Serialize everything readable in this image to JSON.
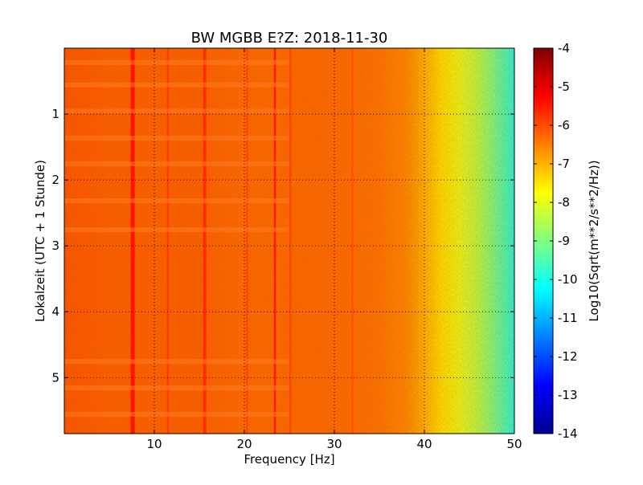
{
  "chart_data": {
    "type": "heatmap",
    "title": "BW MGBB E?Z: 2018-11-30",
    "xlabel": "Frequency [Hz]",
    "ylabel": "Lokalzeit (UTC + 1 Stunde)",
    "colorbar_label": "Log10(Sqrt(m**2/s**2/Hz))",
    "xlim": [
      0,
      50
    ],
    "ylim": [
      5.85,
      0
    ],
    "y_axis_inverted": true,
    "x_ticks": [
      "10",
      "20",
      "30",
      "40",
      "50"
    ],
    "x_tick_values": [
      10,
      20,
      30,
      40,
      50
    ],
    "y_ticks": [
      "1",
      "2",
      "3",
      "4",
      "5"
    ],
    "y_tick_values": [
      1,
      2,
      3,
      4,
      5
    ],
    "colorbar_range": [
      -14,
      -4
    ],
    "colorbar_ticks": [
      "-4",
      "-5",
      "-6",
      "-7",
      "-8",
      "-9",
      "-10",
      "-11",
      "-12",
      "-13",
      "-14"
    ],
    "colorbar_tick_values": [
      -4,
      -5,
      -6,
      -7,
      -8,
      -9,
      -10,
      -11,
      -12,
      -13,
      -14
    ],
    "colormap": "jet",
    "grid": true,
    "grid_style": "dotted",
    "approx_level_profile": {
      "frequency_hz": [
        0,
        5,
        10,
        15,
        20,
        25,
        30,
        35,
        38,
        40,
        42,
        44,
        46,
        48,
        50
      ],
      "log10_level": [
        -6.1,
        -6.2,
        -6.2,
        -6.2,
        -6.3,
        -6.3,
        -6.3,
        -6.4,
        -6.6,
        -7.0,
        -7.5,
        -8.0,
        -8.5,
        -9.2,
        -10.0
      ]
    },
    "spectral_lines": [
      {
        "frequency_hz": 7.6,
        "log10_level": -5.3
      },
      {
        "frequency_hz": 11.5,
        "log10_level": -5.8
      },
      {
        "frequency_hz": 15.6,
        "log10_level": -5.6
      },
      {
        "frequency_hz": 20.3,
        "log10_level": -5.9
      },
      {
        "frequency_hz": 23.4,
        "log10_level": -5.4
      },
      {
        "frequency_hz": 25.1,
        "log10_level": -5.9
      },
      {
        "frequency_hz": 32.0,
        "log10_level": -6.0
      }
    ]
  }
}
